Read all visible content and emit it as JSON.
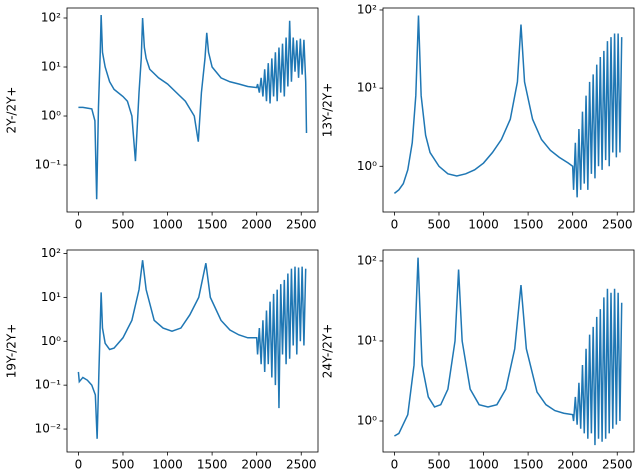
{
  "chart_data": [
    {
      "type": "line",
      "ylabel": "2Y-/2Y+",
      "color": "#1f77b4",
      "log_y": true,
      "xlim": [
        -128,
        2688
      ],
      "ylim": [
        0.011,
        160
      ],
      "xticks": [
        0,
        500,
        1000,
        1500,
        2000,
        2500
      ],
      "yticks": [
        {
          "value": 0.1,
          "label": "10⁻¹"
        },
        {
          "value": 1,
          "label": "10⁰"
        },
        {
          "value": 10,
          "label": "10¹"
        },
        {
          "value": 100,
          "label": "10²"
        }
      ],
      "x": [
        0,
        50,
        100,
        150,
        185,
        205,
        225,
        245,
        255,
        270,
        300,
        350,
        400,
        500,
        550,
        600,
        640,
        680,
        705,
        720,
        740,
        760,
        800,
        900,
        1000,
        1100,
        1200,
        1300,
        1345,
        1380,
        1420,
        1440,
        1460,
        1500,
        1600,
        1700,
        1800,
        1900,
        2000,
        2010,
        2030,
        2050,
        2070,
        2090,
        2110,
        2130,
        2150,
        2170,
        2190,
        2210,
        2230,
        2250,
        2270,
        2290,
        2310,
        2330,
        2350,
        2370,
        2390,
        2410,
        2430,
        2450,
        2470,
        2490,
        2510,
        2530,
        2550,
        2559
      ],
      "values": [
        1.5,
        1.5,
        1.45,
        1.4,
        0.8,
        0.02,
        1.5,
        20,
        115,
        20,
        10,
        5,
        3.5,
        2.5,
        2,
        1,
        0.12,
        3,
        15,
        100,
        25,
        15,
        9,
        6,
        4.5,
        3,
        2,
        1,
        0.3,
        3,
        15,
        50,
        20,
        10,
        6,
        5,
        4.5,
        4,
        3.8,
        4.5,
        3,
        6,
        2.5,
        9,
        2,
        12,
        1.8,
        15,
        2.5,
        20,
        2,
        25,
        3,
        30,
        2.5,
        40,
        4,
        88,
        5,
        40,
        8,
        35,
        6,
        38,
        7,
        36,
        5,
        0.45
      ]
    },
    {
      "type": "line",
      "ylabel": "13Y-/2Y+",
      "color": "#1f77b4",
      "log_y": true,
      "xlim": [
        -128,
        2688
      ],
      "ylim": [
        0.26,
        106
      ],
      "xticks": [
        0,
        500,
        1000,
        1500,
        2000,
        2500
      ],
      "yticks": [
        {
          "value": 1,
          "label": "10⁰"
        },
        {
          "value": 10,
          "label": "10¹"
        },
        {
          "value": 100,
          "label": "10²"
        }
      ],
      "x": [
        0,
        50,
        100,
        150,
        200,
        240,
        270,
        300,
        350,
        400,
        500,
        600,
        700,
        800,
        900,
        1000,
        1100,
        1200,
        1300,
        1380,
        1420,
        1460,
        1550,
        1650,
        1750,
        1850,
        1950,
        2000,
        2010,
        2030,
        2050,
        2070,
        2090,
        2110,
        2130,
        2150,
        2170,
        2190,
        2210,
        2230,
        2250,
        2270,
        2290,
        2310,
        2330,
        2350,
        2370,
        2390,
        2410,
        2430,
        2450,
        2470,
        2490,
        2510,
        2530,
        2550
      ],
      "values": [
        0.45,
        0.5,
        0.6,
        0.9,
        2,
        8,
        85,
        8,
        2.5,
        1.5,
        1,
        0.8,
        0.75,
        0.8,
        0.9,
        1.1,
        1.5,
        2.2,
        4,
        12,
        65,
        12,
        4,
        2.2,
        1.6,
        1.3,
        1.1,
        1,
        0.5,
        2,
        0.4,
        3,
        0.5,
        5,
        0.6,
        8,
        0.5,
        12,
        0.8,
        15,
        0.7,
        20,
        1,
        25,
        0.9,
        30,
        1.2,
        40,
        1,
        45,
        1.5,
        50,
        1.3,
        50,
        1.5,
        45
      ]
    },
    {
      "type": "line",
      "ylabel": "19Y-/2Y+",
      "color": "#1f77b4",
      "log_y": true,
      "xlim": [
        -128,
        2688
      ],
      "ylim": [
        0.003,
        120
      ],
      "xticks": [
        0,
        500,
        1000,
        1500,
        2000,
        2500
      ],
      "yticks": [
        {
          "value": 0.01,
          "label": "10⁻²"
        },
        {
          "value": 0.1,
          "label": "10⁻¹"
        },
        {
          "value": 1,
          "label": "10⁰"
        },
        {
          "value": 10,
          "label": "10¹"
        },
        {
          "value": 100,
          "label": "10²"
        }
      ],
      "x": [
        0,
        10,
        50,
        100,
        150,
        190,
        210,
        230,
        255,
        270,
        300,
        350,
        400,
        500,
        600,
        680,
        720,
        760,
        850,
        950,
        1050,
        1150,
        1250,
        1350,
        1430,
        1480,
        1600,
        1700,
        1800,
        1900,
        2000,
        2010,
        2030,
        2050,
        2070,
        2090,
        2110,
        2130,
        2150,
        2170,
        2190,
        2210,
        2230,
        2250,
        2270,
        2290,
        2310,
        2330,
        2350,
        2370,
        2390,
        2410,
        2430,
        2450,
        2470,
        2490,
        2510,
        2530,
        2550
      ],
      "values": [
        0.2,
        0.12,
        0.15,
        0.13,
        0.1,
        0.06,
        0.006,
        0.2,
        13,
        2,
        0.9,
        0.65,
        0.7,
        1.2,
        3,
        15,
        70,
        15,
        3,
        2,
        1.7,
        2,
        4,
        10,
        60,
        10,
        3,
        1.8,
        1.4,
        1.2,
        1.2,
        0.5,
        2,
        0.3,
        3,
        0.2,
        5,
        0.3,
        8,
        0.15,
        12,
        0.1,
        15,
        0.03,
        20,
        0.5,
        25,
        0.3,
        35,
        0.4,
        45,
        0.8,
        50,
        0.5,
        48,
        1,
        50,
        0.8,
        45
      ]
    },
    {
      "type": "line",
      "ylabel": "24Y-/2Y+",
      "color": "#1f77b4",
      "log_y": true,
      "xlim": [
        -128,
        2688
      ],
      "ylim": [
        0.41,
        137
      ],
      "xticks": [
        0,
        500,
        1000,
        1500,
        2000,
        2500
      ],
      "yticks": [
        {
          "value": 1,
          "label": "10⁰"
        },
        {
          "value": 10,
          "label": "10¹"
        },
        {
          "value": 100,
          "label": "10²"
        }
      ],
      "x": [
        0,
        50,
        150,
        220,
        265,
        310,
        380,
        450,
        520,
        600,
        680,
        720,
        760,
        850,
        950,
        1050,
        1150,
        1250,
        1350,
        1420,
        1480,
        1600,
        1700,
        1800,
        1900,
        2000,
        2010,
        2030,
        2050,
        2070,
        2090,
        2110,
        2130,
        2150,
        2170,
        2190,
        2210,
        2230,
        2250,
        2270,
        2290,
        2310,
        2330,
        2350,
        2370,
        2390,
        2410,
        2430,
        2450,
        2470,
        2490,
        2510,
        2530,
        2550
      ],
      "values": [
        0.65,
        0.7,
        1.2,
        5,
        110,
        5,
        2,
        1.5,
        1.6,
        2.5,
        10,
        78,
        10,
        2.5,
        1.6,
        1.5,
        1.6,
        2.5,
        8,
        50,
        8,
        2.3,
        1.6,
        1.35,
        1.25,
        1.2,
        1,
        2,
        0.9,
        3,
        0.8,
        5,
        0.7,
        8,
        0.6,
        12,
        0.7,
        15,
        0.5,
        20,
        0.6,
        25,
        0.55,
        35,
        0.6,
        45,
        0.7,
        40,
        0.8,
        45,
        0.9,
        40,
        1,
        30
      ]
    }
  ]
}
